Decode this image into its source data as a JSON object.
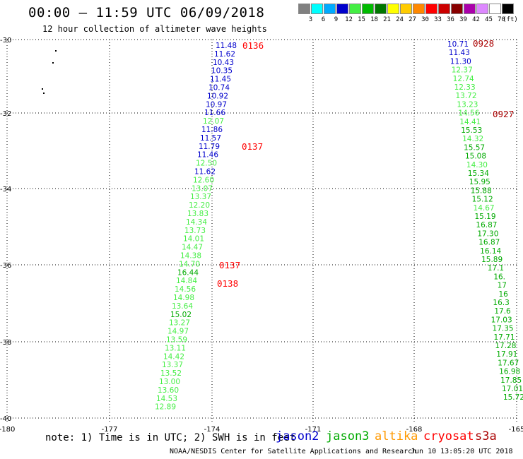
{
  "header": {
    "title": "00:00 – 11:59 UTC 06/09/2018",
    "subtitle": "12 hour collection of altimeter wave heights"
  },
  "legend": {
    "unit": "(ft)",
    "bins": [
      {
        "label": "3",
        "color": "#808080"
      },
      {
        "label": "6",
        "color": "#00ffff"
      },
      {
        "label": "9",
        "color": "#00aaff"
      },
      {
        "label": "12",
        "color": "#0000cc"
      },
      {
        "label": "15",
        "color": "#44ee44"
      },
      {
        "label": "18",
        "color": "#00bb00"
      },
      {
        "label": "21",
        "color": "#007700"
      },
      {
        "label": "24",
        "color": "#ffff00"
      },
      {
        "label": "27",
        "color": "#ffcc00"
      },
      {
        "label": "30",
        "color": "#ff8800"
      },
      {
        "label": "33",
        "color": "#ff0000"
      },
      {
        "label": "36",
        "color": "#cc0000"
      },
      {
        "label": "39",
        "color": "#880000"
      },
      {
        "label": "42",
        "color": "#aa00aa"
      },
      {
        "label": "45",
        "color": "#dd88ff"
      },
      {
        "label": "70",
        "color": "#ffffff"
      },
      {
        "label": "",
        "color": "#000000"
      }
    ]
  },
  "axes": {
    "lon_ticks": [
      "-180",
      "-177",
      "-174",
      "-171",
      "-168",
      "-165"
    ],
    "lat_ticks": [
      "-30",
      "-32",
      "-34",
      "-36",
      "-38",
      "-40"
    ]
  },
  "colors": {
    "blue": "#0000cc",
    "lightgreen": "#44ee44",
    "green": "#00aa00",
    "red": "#ff0000",
    "darkred": "#aa0000",
    "grid": "#000000"
  },
  "tracks": [
    {
      "name": "track-a",
      "readings": [
        {
          "v": "11.48",
          "c": "blue"
        },
        {
          "v": "11.62",
          "c": "blue"
        },
        {
          "v": "10.43",
          "c": "blue"
        },
        {
          "v": "10.35",
          "c": "blue"
        },
        {
          "v": "11.45",
          "c": "blue"
        },
        {
          "v": "10.74",
          "c": "blue"
        },
        {
          "v": "10.92",
          "c": "blue"
        },
        {
          "v": "10.97",
          "c": "blue"
        },
        {
          "v": "11.66",
          "c": "blue"
        },
        {
          "v": "12.07",
          "c": "lightgreen"
        },
        {
          "v": "11.86",
          "c": "blue"
        },
        {
          "v": "11.57",
          "c": "blue"
        },
        {
          "v": "11.79",
          "c": "blue"
        },
        {
          "v": "11.46",
          "c": "blue"
        },
        {
          "v": "12.50",
          "c": "lightgreen"
        },
        {
          "v": "11.62",
          "c": "blue"
        },
        {
          "v": "12.60",
          "c": "lightgreen"
        },
        {
          "v": "13.07",
          "c": "lightgreen"
        },
        {
          "v": "13.37",
          "c": "lightgreen"
        },
        {
          "v": "12.20",
          "c": "lightgreen"
        },
        {
          "v": "13.83",
          "c": "lightgreen"
        },
        {
          "v": "14.34",
          "c": "lightgreen"
        },
        {
          "v": "13.73",
          "c": "lightgreen"
        },
        {
          "v": "14.01",
          "c": "lightgreen"
        },
        {
          "v": "14.47",
          "c": "lightgreen"
        },
        {
          "v": "14.38",
          "c": "lightgreen"
        },
        {
          "v": "14.70",
          "c": "lightgreen"
        },
        {
          "v": "16.44",
          "c": "green"
        },
        {
          "v": "14.84",
          "c": "lightgreen"
        },
        {
          "v": "14.56",
          "c": "lightgreen"
        },
        {
          "v": "14.98",
          "c": "lightgreen"
        },
        {
          "v": "13.64",
          "c": "lightgreen"
        },
        {
          "v": "15.02",
          "c": "green"
        },
        {
          "v": "13.27",
          "c": "lightgreen"
        },
        {
          "v": "14.97",
          "c": "lightgreen"
        },
        {
          "v": "13.59",
          "c": "lightgreen"
        },
        {
          "v": "13.11",
          "c": "lightgreen"
        },
        {
          "v": "14.42",
          "c": "lightgreen"
        },
        {
          "v": "13.37",
          "c": "lightgreen"
        },
        {
          "v": "13.52",
          "c": "lightgreen"
        },
        {
          "v": "13.00",
          "c": "lightgreen"
        },
        {
          "v": "13.60",
          "c": "lightgreen"
        },
        {
          "v": "14.53",
          "c": "lightgreen"
        },
        {
          "v": "12.89",
          "c": "lightgreen"
        }
      ]
    },
    {
      "name": "track-b",
      "readings": [
        {
          "v": "10.71",
          "c": "blue"
        },
        {
          "v": "11.43",
          "c": "blue"
        },
        {
          "v": "11.30",
          "c": "blue"
        },
        {
          "v": "12.37",
          "c": "lightgreen"
        },
        {
          "v": "12.74",
          "c": "lightgreen"
        },
        {
          "v": "12.33",
          "c": "lightgreen"
        },
        {
          "v": "13.72",
          "c": "lightgreen"
        },
        {
          "v": "13.23",
          "c": "lightgreen"
        },
        {
          "v": "14.56",
          "c": "lightgreen"
        },
        {
          "v": "14.41",
          "c": "lightgreen"
        },
        {
          "v": "15.53",
          "c": "green"
        },
        {
          "v": "14.32",
          "c": "lightgreen"
        },
        {
          "v": "15.57",
          "c": "green"
        },
        {
          "v": "15.08",
          "c": "green"
        },
        {
          "v": "14.30",
          "c": "lightgreen"
        },
        {
          "v": "15.34",
          "c": "green"
        },
        {
          "v": "15.95",
          "c": "green"
        },
        {
          "v": "15.88",
          "c": "green"
        },
        {
          "v": "15.12",
          "c": "green"
        },
        {
          "v": "14.67",
          "c": "lightgreen"
        },
        {
          "v": "15.19",
          "c": "green"
        },
        {
          "v": "16.87",
          "c": "green"
        },
        {
          "v": "17.30",
          "c": "green"
        },
        {
          "v": "16.87",
          "c": "green"
        },
        {
          "v": "16.14",
          "c": "green"
        },
        {
          "v": "15.89",
          "c": "green"
        },
        {
          "v": "17.1",
          "c": "green"
        },
        {
          "v": "16.",
          "c": "green"
        },
        {
          "v": "17",
          "c": "green"
        },
        {
          "v": "16",
          "c": "green"
        },
        {
          "v": "16.3",
          "c": "green"
        },
        {
          "v": "17.6",
          "c": "green"
        },
        {
          "v": "17.03",
          "c": "green"
        },
        {
          "v": "17.35",
          "c": "green"
        },
        {
          "v": "17.71",
          "c": "green"
        },
        {
          "v": "17.28",
          "c": "green"
        },
        {
          "v": "17.91",
          "c": "green"
        },
        {
          "v": "17.67",
          "c": "green"
        },
        {
          "v": "16.98",
          "c": "green"
        },
        {
          "v": "17.85",
          "c": "green"
        },
        {
          "v": "17.01",
          "c": "green"
        },
        {
          "v": "15.72",
          "c": "green"
        }
      ]
    }
  ],
  "pass_labels": [
    {
      "text": "0136",
      "c": "red"
    },
    {
      "text": "0137",
      "c": "red"
    },
    {
      "text": "0137",
      "c": "red"
    },
    {
      "text": "0138",
      "c": "red"
    },
    {
      "text": "0928",
      "c": "darkred"
    },
    {
      "text": "0927",
      "c": "darkred"
    }
  ],
  "note": "note: 1) Time is in UTC; 2) SWH is in feet",
  "missions": [
    {
      "text": "jason2",
      "color": "#0000cc"
    },
    {
      "text": "jason3",
      "color": "#00aa00"
    },
    {
      "text": "altika",
      "color": "#ff9900"
    },
    {
      "text": "cryosat",
      "color": "#ff0000"
    },
    {
      "text": "s3a",
      "color": "#aa0000"
    }
  ],
  "footer": {
    "credit": "NOAA/NESDIS Center for Satellite Applications and Research",
    "timestamp": "Jun 10 13:05:20 UTC 2018"
  }
}
